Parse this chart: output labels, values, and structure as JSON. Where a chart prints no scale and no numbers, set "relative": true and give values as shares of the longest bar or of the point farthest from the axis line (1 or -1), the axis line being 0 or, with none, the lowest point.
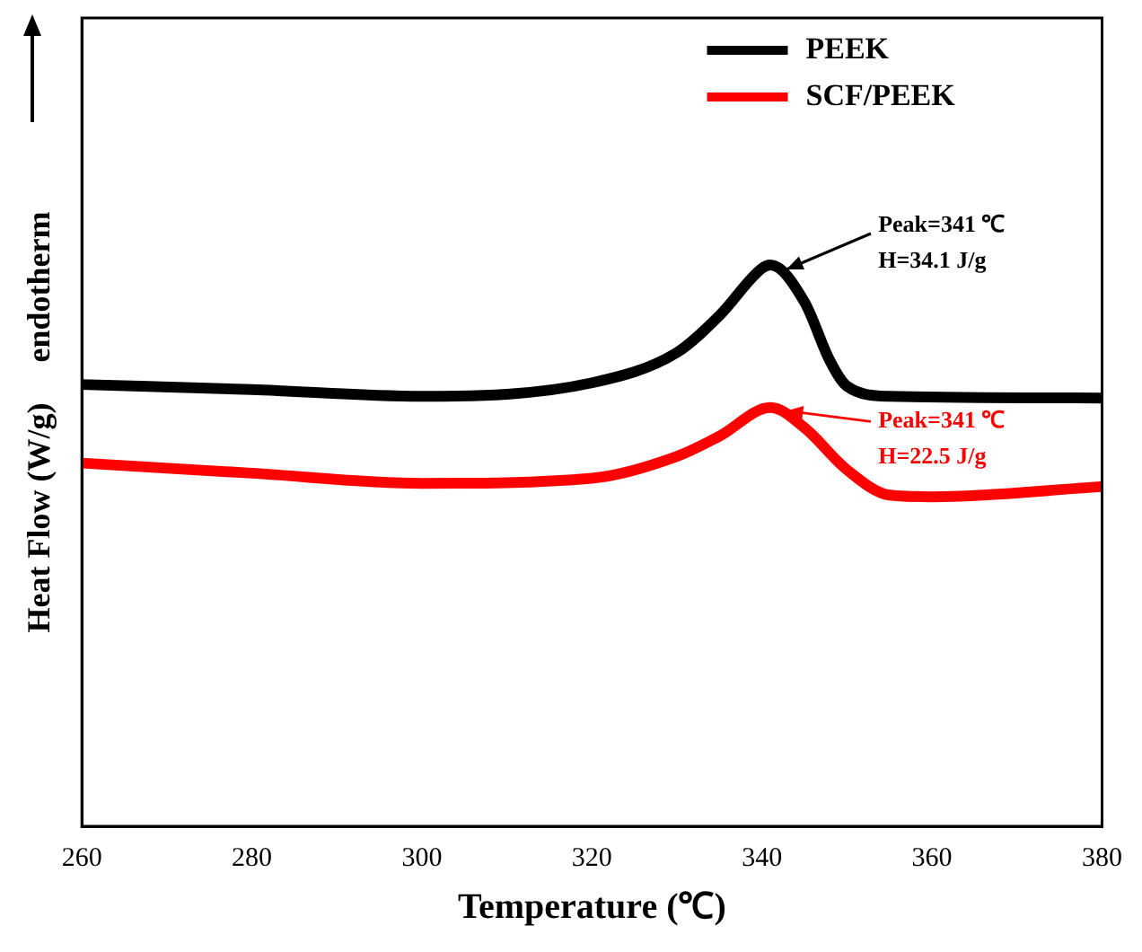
{
  "chart_data": {
    "type": "line",
    "relative": true,
    "xlabel": "Temperature (℃)",
    "ylabel": "Heat Flow (W/g)     endotherm",
    "legend": "top right",
    "grid": false,
    "line_style": "solid",
    "xlim": [
      260,
      380
    ],
    "xticks": [
      260,
      280,
      300,
      320,
      340,
      360,
      380
    ],
    "series": [
      {
        "name": "PEEK",
        "color": "#000000",
        "x": [
          260,
          280,
          300,
          320,
          330,
          335,
          340,
          341,
          345,
          348,
          350,
          355,
          380
        ],
        "values": [
          0.787,
          0.778,
          0.766,
          0.79,
          0.844,
          0.91,
          0.994,
          1.0,
          0.934,
          0.829,
          0.784,
          0.766,
          0.763
        ]
      },
      {
        "name": "SCF/PEEK",
        "color": "#ff0000",
        "x": [
          260,
          280,
          300,
          320,
          330,
          335,
          341,
          345,
          350,
          355,
          360,
          380
        ],
        "values": [
          0.647,
          0.629,
          0.611,
          0.62,
          0.659,
          0.695,
          0.746,
          0.71,
          0.635,
          0.59,
          0.587,
          0.605
        ]
      }
    ],
    "annotations": [
      {
        "text": "Peak=341 ℃\nH=34.1 J/g",
        "x": 341,
        "y": 1.0
      },
      {
        "text": "Peak=341 ℃\nH=22.5 J/g",
        "x": 341,
        "y": 0.746
      }
    ]
  }
}
